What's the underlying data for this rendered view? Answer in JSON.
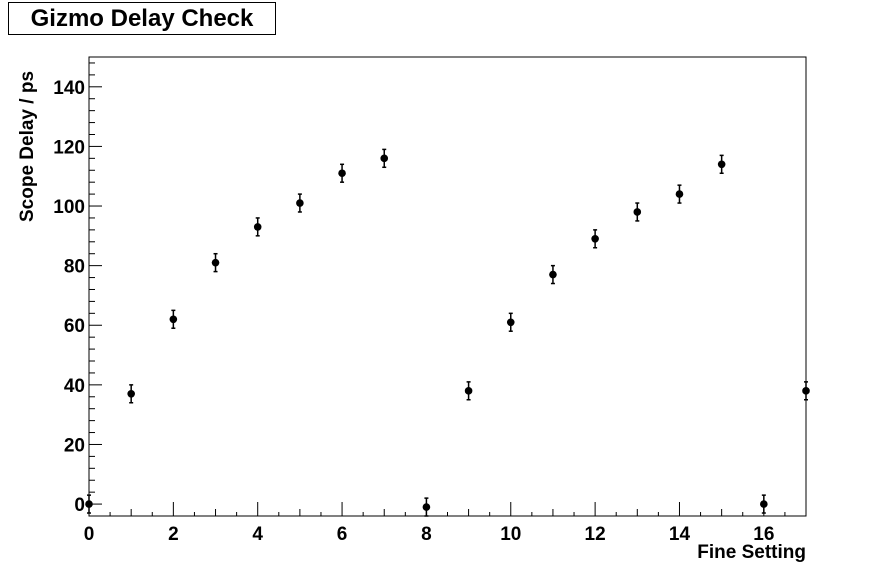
{
  "chart_data": {
    "type": "scatter",
    "title": "Gizmo Delay Check",
    "xlabel": "Fine Setting",
    "ylabel": "Scope Delay / ps",
    "xlim": [
      0,
      17
    ],
    "ylim": [
      -4,
      150
    ],
    "x_ticks": [
      0,
      2,
      4,
      6,
      8,
      10,
      12,
      14,
      16
    ],
    "y_ticks": [
      0,
      20,
      40,
      60,
      80,
      100,
      120,
      140
    ],
    "grid": false,
    "legend": "none",
    "marker_color": "#000000",
    "error_bar": 3,
    "x": [
      0,
      1,
      2,
      3,
      4,
      5,
      6,
      7,
      8,
      9,
      10,
      11,
      12,
      13,
      14,
      15,
      16,
      17
    ],
    "y": [
      0,
      37,
      62,
      81,
      93,
      101,
      111,
      116,
      -1,
      38,
      61,
      77,
      89,
      98,
      104,
      114,
      0,
      38
    ]
  }
}
